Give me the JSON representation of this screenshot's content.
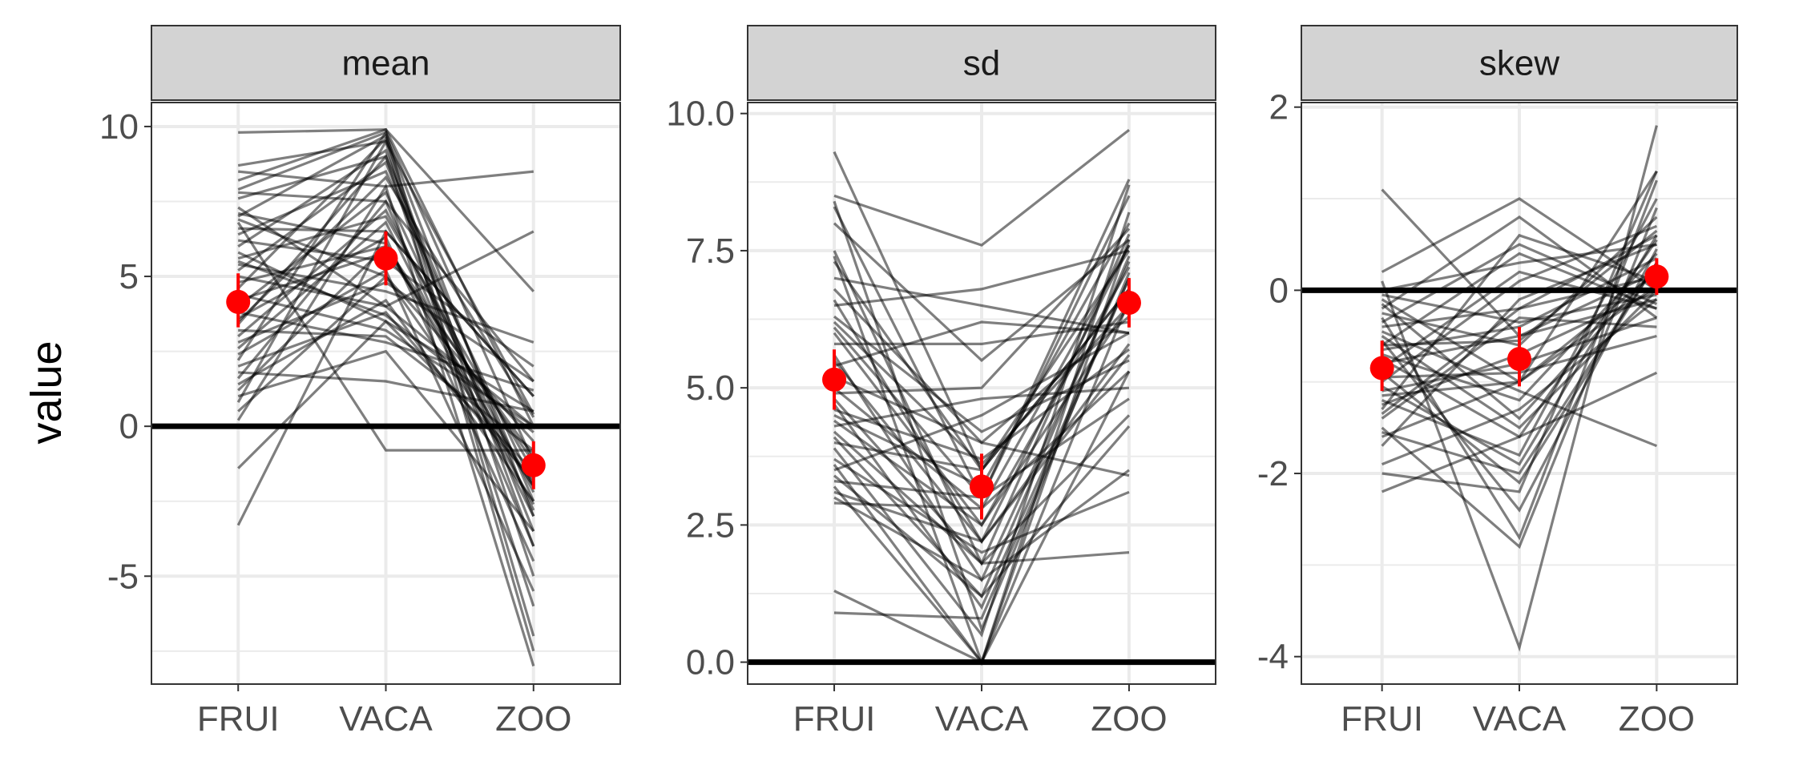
{
  "chart_data": {
    "type": "line",
    "ylabel": "value",
    "categories": [
      "FRUI",
      "VACA",
      "ZOO"
    ],
    "colors": {
      "subject_lines": "#000000",
      "summary_points": "#ff0000",
      "strip_background": "#d3d3d3",
      "reference_line": "#000000"
    },
    "grid": true,
    "facets": [
      {
        "label": "mean",
        "ylim": [
          -8.6,
          10.8
        ],
        "yticks": [
          {
            "value": -5,
            "label": "-5"
          },
          {
            "value": 0,
            "label": "0"
          },
          {
            "value": 5,
            "label": "5"
          },
          {
            "value": 10,
            "label": "10"
          }
        ],
        "yminor": [
          -7.5,
          -2.5,
          2.5,
          7.5
        ],
        "reference_line": 0,
        "summary": {
          "values": [
            4.15,
            5.6,
            -1.3
          ],
          "lower": [
            3.3,
            4.7,
            -2.1
          ],
          "upper": [
            5.1,
            6.5,
            -0.5
          ]
        },
        "lines": [
          [
            9.8,
            9.9,
            4.5
          ],
          [
            8.7,
            9.5,
            0.4
          ],
          [
            8.5,
            8.0,
            8.5
          ],
          [
            8.2,
            9.9,
            0.0
          ],
          [
            7.9,
            9.8,
            -1.2
          ],
          [
            7.8,
            7.5,
            1.5
          ],
          [
            7.6,
            9.0,
            -2.5
          ],
          [
            7.3,
            4.0,
            0.0
          ],
          [
            7.0,
            9.7,
            -3.0
          ],
          [
            6.9,
            5.0,
            -0.5
          ],
          [
            6.6,
            6.5,
            1.0
          ],
          [
            6.4,
            8.5,
            -2.0
          ],
          [
            6.2,
            5.5,
            2.0
          ],
          [
            6.0,
            9.2,
            -4.0
          ],
          [
            5.8,
            3.5,
            0.5
          ],
          [
            5.6,
            7.0,
            -1.5
          ],
          [
            5.4,
            4.5,
            2.8
          ],
          [
            5.2,
            8.8,
            -3.5
          ],
          [
            5.0,
            4.0,
            6.5
          ],
          [
            4.8,
            6.0,
            -2.0
          ],
          [
            4.6,
            9.6,
            -5.0
          ],
          [
            4.4,
            3.2,
            0.0
          ],
          [
            4.2,
            5.8,
            -1.0
          ],
          [
            4.0,
            7.8,
            -2.8
          ],
          [
            3.8,
            2.8,
            1.2
          ],
          [
            3.6,
            6.3,
            -4.5
          ],
          [
            3.4,
            9.0,
            -6.0
          ],
          [
            3.2,
            3.0,
            -0.8
          ],
          [
            3.0,
            7.2,
            -2.2
          ],
          [
            2.8,
            4.8,
            1.5
          ],
          [
            2.6,
            6.8,
            -3.0
          ],
          [
            2.4,
            5.2,
            -5.5
          ],
          [
            2.2,
            9.8,
            -7.0
          ],
          [
            2.0,
            3.8,
            -1.8
          ],
          [
            1.8,
            1.5,
            0.5
          ],
          [
            1.6,
            7.5,
            -4.0
          ],
          [
            1.4,
            4.2,
            -2.5
          ],
          [
            1.2,
            6.0,
            -1.2
          ],
          [
            1.0,
            2.5,
            -3.5
          ],
          [
            0.8,
            9.5,
            -7.5
          ],
          [
            0.5,
            5.0,
            -2.0
          ],
          [
            0.2,
            8.0,
            -8.0
          ],
          [
            -1.4,
            3.5,
            -1.5
          ],
          [
            -3.3,
            6.5,
            1.0
          ],
          [
            6.8,
            -0.8,
            -0.8
          ],
          [
            3.5,
            8.3,
            0.3
          ],
          [
            5.5,
            3.7,
            -0.2
          ],
          [
            7.1,
            6.1,
            -2.6
          ]
        ]
      },
      {
        "label": "sd",
        "ylim": [
          -0.4,
          10.2
        ],
        "yticks": [
          {
            "value": 0,
            "label": "0.0"
          },
          {
            "value": 2.5,
            "label": "2.5"
          },
          {
            "value": 5,
            "label": "5.0"
          },
          {
            "value": 7.5,
            "label": "7.5"
          },
          {
            "value": 10,
            "label": "10.0"
          }
        ],
        "yminor": [
          1.25,
          3.75,
          6.25,
          8.75
        ],
        "reference_line": 0,
        "summary": {
          "values": [
            5.15,
            3.2,
            6.55
          ],
          "lower": [
            4.6,
            2.6,
            6.1
          ],
          "upper": [
            5.7,
            3.8,
            7.0
          ]
        },
        "lines": [
          [
            9.3,
            3.5,
            7.5
          ],
          [
            8.5,
            7.6,
            9.7
          ],
          [
            8.3,
            3.0,
            8.8
          ],
          [
            8.0,
            5.5,
            7.7
          ],
          [
            7.5,
            1.8,
            7.8
          ],
          [
            7.3,
            3.5,
            6.8
          ],
          [
            7.0,
            6.5,
            6.0
          ],
          [
            6.6,
            2.2,
            7.6
          ],
          [
            6.5,
            6.8,
            7.5
          ],
          [
            6.3,
            4.2,
            5.5
          ],
          [
            6.1,
            3.0,
            8.5
          ],
          [
            6.0,
            2.5,
            6.5
          ],
          [
            5.8,
            5.8,
            6.2
          ],
          [
            5.6,
            1.5,
            7.3
          ],
          [
            5.4,
            6.2,
            6.0
          ],
          [
            5.2,
            4.0,
            3.4
          ],
          [
            5.0,
            2.8,
            5.3
          ],
          [
            4.9,
            5.0,
            7.9
          ],
          [
            4.7,
            1.0,
            7.0
          ],
          [
            4.6,
            3.7,
            5.7
          ],
          [
            4.5,
            3.2,
            8.0
          ],
          [
            4.4,
            2.5,
            7.2
          ],
          [
            4.3,
            4.8,
            5.0
          ],
          [
            4.2,
            1.8,
            4.5
          ],
          [
            4.0,
            3.5,
            6.8
          ],
          [
            3.9,
            0.5,
            8.7
          ],
          [
            3.7,
            2.0,
            3.1
          ],
          [
            3.5,
            4.5,
            6.0
          ],
          [
            3.4,
            1.2,
            7.4
          ],
          [
            3.3,
            3.0,
            4.8
          ],
          [
            3.2,
            0.0,
            6.6
          ],
          [
            3.1,
            2.2,
            5.8
          ],
          [
            3.0,
            1.5,
            3.5
          ],
          [
            2.9,
            2.8,
            7.6
          ],
          [
            1.3,
            0.0,
            5.3
          ],
          [
            0.9,
            0.8,
            7.0
          ],
          [
            4.8,
            1.8,
            2.0
          ],
          [
            7.4,
            0.0,
            8.2
          ],
          [
            6.8,
            4.0,
            6.3
          ],
          [
            5.5,
            2.2,
            5.6
          ],
          [
            3.6,
            0.0,
            7.7
          ],
          [
            8.4,
            0.6,
            7.1
          ],
          [
            4.1,
            1.2,
            4.3
          ],
          [
            6.2,
            3.6,
            6.5
          ]
        ]
      },
      {
        "label": "skew",
        "ylim": [
          -4.3,
          2.05
        ],
        "yticks": [
          {
            "value": -4,
            "label": "-4"
          },
          {
            "value": -2,
            "label": "-2"
          },
          {
            "value": 0,
            "label": "0"
          },
          {
            "value": 2,
            "label": "2"
          }
        ],
        "yminor": [
          -3,
          -1,
          1
        ],
        "reference_line": 0,
        "summary": {
          "values": [
            -0.85,
            -0.75,
            0.15
          ],
          "lower": [
            -1.1,
            -1.05,
            -0.05
          ],
          "upper": [
            -0.55,
            -0.4,
            0.35
          ]
        },
        "lines": [
          [
            1.1,
            -0.5,
            0.2
          ],
          [
            0.2,
            1.0,
            0.0
          ],
          [
            0.1,
            -3.9,
            1.8
          ],
          [
            0.0,
            0.3,
            0.5
          ],
          [
            -0.1,
            -1.0,
            1.3
          ],
          [
            -0.2,
            0.8,
            -0.3
          ],
          [
            -0.3,
            -2.7,
            1.2
          ],
          [
            -0.4,
            -0.2,
            0.6
          ],
          [
            -0.5,
            -1.5,
            0.0
          ],
          [
            -0.6,
            0.4,
            -0.2
          ],
          [
            -0.7,
            -1.2,
            0.4
          ],
          [
            -0.8,
            -0.5,
            -0.1
          ],
          [
            -0.9,
            -2.1,
            0.3
          ],
          [
            -1.0,
            0.1,
            0.7
          ],
          [
            -1.1,
            -0.8,
            -0.3
          ],
          [
            -1.2,
            -1.8,
            1.0
          ],
          [
            -1.3,
            0.6,
            0.1
          ],
          [
            -1.4,
            -0.3,
            -0.4
          ],
          [
            -1.5,
            -2.8,
            0.9
          ],
          [
            -1.6,
            -1.0,
            0.2
          ],
          [
            -1.7,
            -0.1,
            0.5
          ],
          [
            -1.9,
            -1.3,
            -0.1
          ],
          [
            -2.0,
            -2.2,
            1.3
          ],
          [
            -2.2,
            -1.6,
            -0.9
          ],
          [
            -0.25,
            -0.6,
            0.8
          ],
          [
            -0.45,
            -1.1,
            -1.7
          ],
          [
            -0.65,
            -0.4,
            0.35
          ],
          [
            -0.85,
            0.2,
            -0.2
          ],
          [
            -1.05,
            -1.9,
            0.6
          ],
          [
            -1.25,
            -0.7,
            0.0
          ],
          [
            -0.15,
            -1.4,
            0.25
          ],
          [
            -0.55,
            -2.4,
            0.45
          ],
          [
            -0.95,
            -0.9,
            -0.5
          ],
          [
            -1.35,
            -0.2,
            0.15
          ],
          [
            -0.35,
            0.5,
            -0.15
          ],
          [
            -0.75,
            -1.6,
            0.55
          ],
          [
            -1.15,
            -1.0,
            0.05
          ],
          [
            -1.55,
            -2.0,
            0.3
          ],
          [
            -0.05,
            -0.35,
            -0.05
          ],
          [
            -0.6,
            -0.55,
            0.65
          ]
        ]
      }
    ]
  }
}
